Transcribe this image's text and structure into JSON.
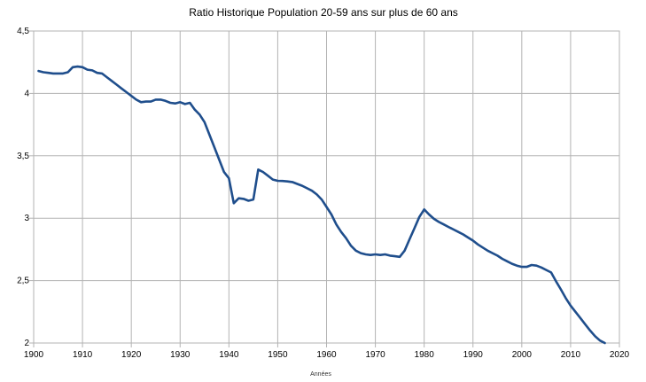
{
  "chart_data": {
    "type": "line",
    "title": "Ratio Historique Population 20-59 ans sur plus de 60 ans",
    "xlabel": "Années",
    "ylabel": "",
    "xlim": [
      1900,
      2020
    ],
    "ylim": [
      2,
      4.5
    ],
    "x_ticks": [
      1900,
      1910,
      1920,
      1930,
      1940,
      1950,
      1960,
      1970,
      1980,
      1990,
      2000,
      2010,
      2020
    ],
    "y_ticks": [
      2,
      2.5,
      3,
      3.5,
      4,
      4.5
    ],
    "y_tick_labels": [
      "2",
      "2,5",
      "3",
      "3,5",
      "4",
      "4,5"
    ],
    "grid": true,
    "line_color": "#1f4e8c",
    "series": [
      {
        "x": [
          1901,
          1902,
          1903,
          1904,
          1905,
          1906,
          1907,
          1908,
          1909,
          1910,
          1911,
          1912,
          1913,
          1914,
          1915,
          1916,
          1917,
          1918,
          1919,
          1920,
          1921,
          1922,
          1923,
          1924,
          1925,
          1926,
          1927,
          1928,
          1929,
          1930,
          1931,
          1932,
          1933,
          1934,
          1935,
          1936,
          1937,
          1938,
          1939,
          1940,
          1941,
          1942,
          1943,
          1944,
          1945,
          1946,
          1947,
          1948,
          1949,
          1950,
          1951,
          1952,
          1953,
          1954,
          1955,
          1956,
          1957,
          1958,
          1959,
          1960,
          1961,
          1962,
          1963,
          1964,
          1965,
          1966,
          1967,
          1968,
          1969,
          1970,
          1971,
          1972,
          1973,
          1974,
          1975,
          1976,
          1977,
          1978,
          1979,
          1980,
          1981,
          1982,
          1983,
          1984,
          1985,
          1986,
          1987,
          1988,
          1989,
          1990,
          1991,
          1992,
          1993,
          1994,
          1995,
          1996,
          1997,
          1998,
          1999,
          2000,
          2001,
          2002,
          2003,
          2004,
          2005,
          2006,
          2007,
          2008,
          2009,
          2010,
          2011,
          2012,
          2013,
          2014,
          2015,
          2016,
          2017
        ],
        "values": [
          4.18,
          4.17,
          4.165,
          4.16,
          4.16,
          4.16,
          4.17,
          4.21,
          4.215,
          4.21,
          4.19,
          4.185,
          4.165,
          4.16,
          4.13,
          4.1,
          4.07,
          4.04,
          4.01,
          3.98,
          3.95,
          3.93,
          3.935,
          3.935,
          3.95,
          3.95,
          3.94,
          3.925,
          3.92,
          3.93,
          3.915,
          3.925,
          3.87,
          3.83,
          3.77,
          3.67,
          3.57,
          3.47,
          3.37,
          3.32,
          3.12,
          3.16,
          3.155,
          3.14,
          3.15,
          3.39,
          3.37,
          3.34,
          3.31,
          3.3,
          3.298,
          3.295,
          3.29,
          3.275,
          3.26,
          3.24,
          3.22,
          3.19,
          3.15,
          3.09,
          3.03,
          2.95,
          2.89,
          2.84,
          2.78,
          2.74,
          2.72,
          2.71,
          2.705,
          2.71,
          2.705,
          2.71,
          2.7,
          2.695,
          2.69,
          2.74,
          2.83,
          2.92,
          3.01,
          3.07,
          3.03,
          2.995,
          2.97,
          2.95,
          2.93,
          2.91,
          2.89,
          2.87,
          2.845,
          2.82,
          2.79,
          2.765,
          2.74,
          2.72,
          2.7,
          2.675,
          2.655,
          2.635,
          2.62,
          2.61,
          2.61,
          2.625,
          2.62,
          2.605,
          2.585,
          2.565,
          2.495,
          2.43,
          2.36,
          2.3,
          2.25,
          2.2,
          2.15,
          2.1,
          2.055,
          2.02,
          2.0
        ]
      }
    ]
  }
}
